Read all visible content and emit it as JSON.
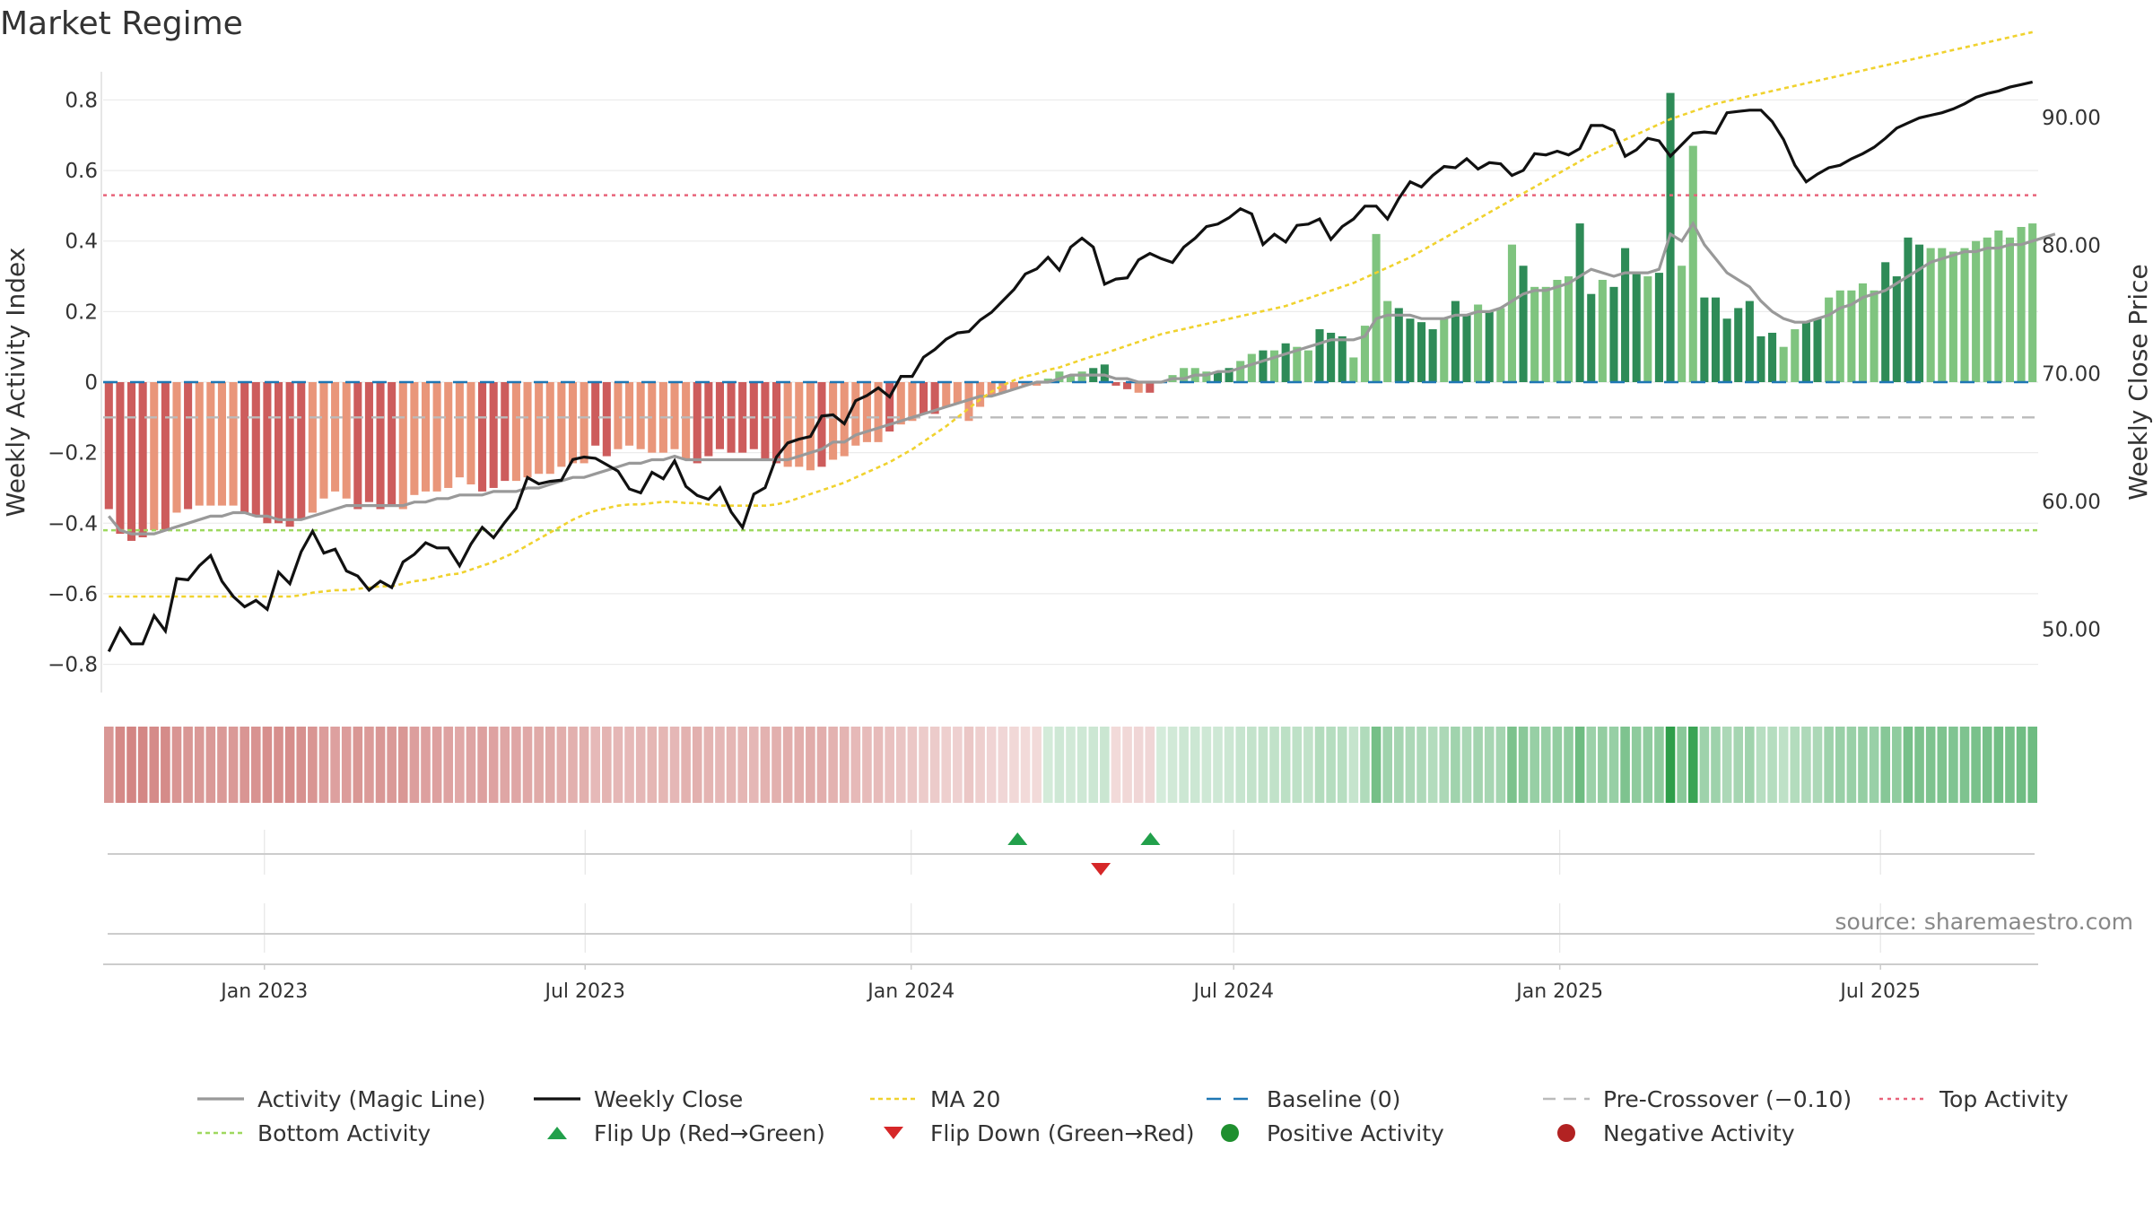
{
  "title": "Market Regime",
  "source": "source: sharemaestro.com",
  "colors": {
    "neg_dark": "#cd5c5c",
    "neg_light": "#e9967a",
    "pos_dark": "#2e8b57",
    "pos_light": "#7fc47f",
    "magic_line": "#999999",
    "close_line": "#111111",
    "ma20": "#f0d22e",
    "baseline": "#1f77b4",
    "pre_crossover": "#bbbbbb",
    "top_activity": "#e8637a",
    "bottom_activity": "#9ed85f",
    "flip_up": "#22a04b",
    "flip_down": "#d62728",
    "positive_dot": "#1f8f2f",
    "negative_dot": "#b22222"
  },
  "legend": [
    {
      "key": "magic",
      "label": "Activity (Magic Line)"
    },
    {
      "key": "close",
      "label": "Weekly Close"
    },
    {
      "key": "ma20",
      "label": "MA 20"
    },
    {
      "key": "baseline",
      "label": "Baseline (0)"
    },
    {
      "key": "precross",
      "label": "Pre-Crossover (−0.10)"
    },
    {
      "key": "top",
      "label": "Top Activity"
    },
    {
      "key": "bottom",
      "label": "Bottom Activity"
    },
    {
      "key": "flipup",
      "label": "Flip Up (Red→Green)"
    },
    {
      "key": "flipdown",
      "label": "Flip Down (Green→Red)"
    },
    {
      "key": "posdot",
      "label": "Positive Activity"
    },
    {
      "key": "negdot",
      "label": "Negative Activity"
    }
  ],
  "chart_data": {
    "type": "bar",
    "title": "Market Regime",
    "ylabel": "Weekly Activity Index",
    "y2label": "Weekly Close Price",
    "ylim": [
      -0.88,
      0.88
    ],
    "y2lim": [
      45.0,
      93.5
    ],
    "yticks": [
      0.8,
      0.6,
      0.4,
      0.2,
      0,
      -0.2,
      -0.4,
      -0.6,
      -0.8
    ],
    "ytick_labels": [
      "0.8",
      "0.6",
      "0.4",
      "0.2",
      "0",
      "−0.2",
      "−0.4",
      "−0.6",
      "−0.8"
    ],
    "y2ticks": [
      90,
      80,
      70,
      60,
      50
    ],
    "y2tick_labels": [
      "90.00",
      "80.00",
      "70.00",
      "60.00",
      "50.00"
    ],
    "x_start": "2022-10-02",
    "x_end": "2025-09-28",
    "xticks": [
      "2023-01-01",
      "2023-07-01",
      "2024-01-01",
      "2024-07-01",
      "2025-01-01",
      "2025-07-01"
    ],
    "xtick_labels": [
      "Jan 2023",
      "Jul 2023",
      "Jan 2024",
      "Jul 2024",
      "Jan 2025",
      "Jul 2025"
    ],
    "reference_lines": {
      "top_activity": 0.53,
      "bottom_activity": -0.42,
      "baseline": 0,
      "pre_crossover": -0.1
    },
    "grid": true,
    "legend_position": "bottom",
    "flip_up": [
      "2024-03-01",
      "2024-05-15"
    ],
    "flip_down": [
      "2024-04-17"
    ],
    "activity_dark": [
      1,
      1,
      1,
      1,
      0,
      1,
      0,
      1,
      0,
      0,
      0,
      0,
      1,
      1,
      1,
      1,
      1,
      1,
      0,
      0,
      0,
      0,
      1,
      1,
      1,
      1,
      0,
      0,
      0,
      0,
      0,
      0,
      0,
      1,
      1,
      1,
      0,
      0,
      0,
      0,
      0,
      0,
      0,
      1,
      1,
      0,
      0,
      0,
      0,
      0,
      0,
      0,
      1,
      1,
      1,
      1,
      1,
      1,
      1,
      1,
      0,
      0,
      0,
      1,
      0,
      0,
      0,
      0,
      0,
      1,
      0,
      0,
      1,
      1,
      0,
      0,
      0,
      0,
      0,
      0,
      0,
      0,
      0,
      0,
      0,
      0,
      0,
      1,
      1,
      1,
      1,
      0,
      1,
      0,
      0,
      0,
      0,
      0,
      1,
      1,
      0,
      0,
      1,
      0,
      1,
      0,
      0,
      1,
      1,
      1,
      0,
      0,
      0,
      0,
      1,
      1,
      1,
      1,
      0,
      1,
      1,
      0,
      1,
      0,
      0,
      1,
      0,
      0,
      0,
      0,
      1,
      1,
      0,
      1,
      1,
      1,
      0,
      1,
      1,
      0,
      0,
      1,
      1,
      1,
      1,
      1,
      1,
      1,
      0,
      0,
      1,
      1,
      0,
      0,
      0,
      0,
      0,
      1,
      1,
      1,
      1
    ],
    "activity": [
      -0.36,
      -0.43,
      -0.45,
      -0.44,
      -0.42,
      -0.42,
      -0.37,
      -0.36,
      -0.35,
      -0.35,
      -0.35,
      -0.35,
      -0.37,
      -0.38,
      -0.4,
      -0.4,
      -0.41,
      -0.39,
      -0.37,
      -0.33,
      -0.31,
      -0.33,
      -0.36,
      -0.34,
      -0.36,
      -0.35,
      -0.36,
      -0.32,
      -0.31,
      -0.31,
      -0.3,
      -0.27,
      -0.29,
      -0.31,
      -0.3,
      -0.28,
      -0.28,
      -0.27,
      -0.26,
      -0.26,
      -0.24,
      -0.23,
      -0.23,
      -0.18,
      -0.21,
      -0.19,
      -0.18,
      -0.19,
      -0.2,
      -0.2,
      -0.19,
      -0.22,
      -0.23,
      -0.21,
      -0.19,
      -0.2,
      -0.2,
      -0.19,
      -0.22,
      -0.23,
      -0.24,
      -0.24,
      -0.25,
      -0.24,
      -0.22,
      -0.21,
      -0.18,
      -0.17,
      -0.17,
      -0.14,
      -0.12,
      -0.11,
      -0.09,
      -0.09,
      -0.07,
      -0.06,
      -0.11,
      -0.07,
      -0.04,
      -0.03,
      -0.02,
      -0.01,
      -0.01,
      0.01,
      0.03,
      0.02,
      0.03,
      0.04,
      0.05,
      -0.01,
      -0.02,
      -0.03,
      -0.03,
      0.0,
      0.02,
      0.04,
      0.04,
      0.03,
      0.03,
      0.04,
      0.06,
      0.08,
      0.09,
      0.09,
      0.11,
      0.1,
      0.09,
      0.15,
      0.14,
      0.13,
      0.07,
      0.16,
      0.42,
      0.23,
      0.21,
      0.18,
      0.17,
      0.15,
      0.18,
      0.23,
      0.19,
      0.22,
      0.2,
      0.21,
      0.39,
      0.33,
      0.27,
      0.27,
      0.29,
      0.3,
      0.45,
      0.25,
      0.29,
      0.27,
      0.38,
      0.31,
      0.3,
      0.31,
      0.82,
      0.33,
      0.67,
      0.24,
      0.24,
      0.18,
      0.21,
      0.23,
      0.13,
      0.14,
      0.1,
      0.15,
      0.17,
      0.18,
      0.24,
      0.26,
      0.26,
      0.28,
      0.26,
      0.34,
      0.3,
      0.41,
      0.39,
      0.38,
      0.38,
      0.37,
      0.38,
      0.4,
      0.41,
      0.43,
      0.41,
      0.44,
      0.45
    ],
    "magic_line": [
      -0.38,
      -0.42,
      -0.43,
      -0.43,
      -0.43,
      -0.42,
      -0.41,
      -0.4,
      -0.39,
      -0.38,
      -0.38,
      -0.37,
      -0.37,
      -0.38,
      -0.38,
      -0.39,
      -0.39,
      -0.39,
      -0.38,
      -0.37,
      -0.36,
      -0.35,
      -0.35,
      -0.35,
      -0.35,
      -0.35,
      -0.35,
      -0.34,
      -0.34,
      -0.33,
      -0.33,
      -0.32,
      -0.32,
      -0.32,
      -0.31,
      -0.31,
      -0.31,
      -0.3,
      -0.3,
      -0.29,
      -0.28,
      -0.27,
      -0.27,
      -0.26,
      -0.25,
      -0.24,
      -0.23,
      -0.23,
      -0.22,
      -0.22,
      -0.21,
      -0.22,
      -0.22,
      -0.22,
      -0.22,
      -0.22,
      -0.22,
      -0.22,
      -0.22,
      -0.22,
      -0.22,
      -0.21,
      -0.2,
      -0.19,
      -0.17,
      -0.17,
      -0.15,
      -0.14,
      -0.13,
      -0.12,
      -0.11,
      -0.1,
      -0.09,
      -0.08,
      -0.07,
      -0.06,
      -0.05,
      -0.04,
      -0.04,
      -0.03,
      -0.02,
      -0.01,
      0.0,
      0.0,
      0.01,
      0.02,
      0.02,
      0.02,
      0.02,
      0.01,
      0.01,
      0.0,
      0.0,
      0.0,
      0.01,
      0.01,
      0.02,
      0.02,
      0.03,
      0.03,
      0.04,
      0.05,
      0.06,
      0.07,
      0.08,
      0.09,
      0.1,
      0.11,
      0.12,
      0.12,
      0.12,
      0.13,
      0.18,
      0.19,
      0.19,
      0.19,
      0.18,
      0.18,
      0.18,
      0.19,
      0.19,
      0.2,
      0.2,
      0.21,
      0.23,
      0.25,
      0.26,
      0.26,
      0.27,
      0.28,
      0.3,
      0.32,
      0.31,
      0.3,
      0.31,
      0.31,
      0.31,
      0.32,
      0.42,
      0.4,
      0.45,
      0.39,
      0.35,
      0.31,
      0.29,
      0.27,
      0.23,
      0.2,
      0.18,
      0.17,
      0.17,
      0.18,
      0.19,
      0.21,
      0.22,
      0.24,
      0.25,
      0.26,
      0.28,
      0.3,
      0.32,
      0.34,
      0.35,
      0.36,
      0.37,
      0.37,
      0.38,
      0.38,
      0.39,
      0.39,
      0.4,
      0.41,
      0.42
    ],
    "weekly_close": [
      48.2,
      50.0,
      48.8,
      48.8,
      51.0,
      49.8,
      53.9,
      53.8,
      54.9,
      55.7,
      53.7,
      52.5,
      51.7,
      52.2,
      51.5,
      54.4,
      53.5,
      56.0,
      57.6,
      55.9,
      56.2,
      54.5,
      54.1,
      53.0,
      53.7,
      53.2,
      55.2,
      55.8,
      56.7,
      56.3,
      56.3,
      54.9,
      56.6,
      57.9,
      57.1,
      58.3,
      59.4,
      61.8,
      61.3,
      61.5,
      61.6,
      63.2,
      63.4,
      63.3,
      62.8,
      62.3,
      60.9,
      60.6,
      62.2,
      61.7,
      63.1,
      61.1,
      60.4,
      60.1,
      61.0,
      59.1,
      57.9,
      60.5,
      61.0,
      63.4,
      64.5,
      64.8,
      65.0,
      66.6,
      66.7,
      66.0,
      67.8,
      68.2,
      68.8,
      68.1,
      69.7,
      69.7,
      71.2,
      71.8,
      72.6,
      73.1,
      73.2,
      74.1,
      74.7,
      75.6,
      76.5,
      77.7,
      78.1,
      79.0,
      78.0,
      79.8,
      80.5,
      79.8,
      76.9,
      77.3,
      77.4,
      78.8,
      79.3,
      78.9,
      78.6,
      79.8,
      80.5,
      81.4,
      81.6,
      82.1,
      82.8,
      82.4,
      80.0,
      80.8,
      80.2,
      81.5,
      81.6,
      82.0,
      80.4,
      81.4,
      82.0,
      83.0,
      83.0,
      82.0,
      83.6,
      84.9,
      84.5,
      85.4,
      86.1,
      86.0,
      86.7,
      85.9,
      86.4,
      86.3,
      85.4,
      85.8,
      87.1,
      87.0,
      87.3,
      87.0,
      87.5,
      89.3,
      89.3,
      88.9,
      86.9,
      87.4,
      88.3,
      88.1,
      86.9,
      87.8,
      88.7,
      88.8,
      88.7,
      90.3,
      90.4,
      90.5,
      90.5,
      89.6,
      88.2,
      86.2,
      84.9,
      85.5,
      86.0,
      86.2,
      86.7,
      87.1,
      87.6,
      88.3,
      89.1,
      89.5,
      89.9,
      90.1,
      90.3,
      90.6,
      91.0,
      91.5,
      91.8,
      92.0,
      92.3,
      92.5,
      92.7
    ],
    "ma20": [
      52.5,
      52.5,
      52.5,
      52.5,
      52.5,
      52.5,
      52.5,
      52.5,
      52.5,
      52.5,
      52.5,
      52.5,
      52.5,
      52.5,
      52.5,
      52.5,
      52.5,
      52.6,
      52.8,
      52.9,
      53.0,
      53.0,
      53.1,
      53.2,
      53.3,
      53.3,
      53.5,
      53.7,
      53.8,
      54.0,
      54.2,
      54.3,
      54.6,
      54.9,
      55.2,
      55.6,
      56.0,
      56.5,
      57.0,
      57.5,
      58.0,
      58.5,
      58.9,
      59.2,
      59.4,
      59.6,
      59.7,
      59.7,
      59.8,
      59.9,
      59.9,
      59.8,
      59.8,
      59.7,
      59.6,
      59.6,
      59.6,
      59.6,
      59.6,
      59.7,
      59.9,
      60.2,
      60.5,
      60.8,
      61.1,
      61.4,
      61.8,
      62.2,
      62.6,
      63.0,
      63.5,
      64.0,
      64.6,
      65.2,
      65.8,
      66.5,
      67.2,
      67.9,
      68.5,
      69.0,
      69.4,
      69.7,
      69.9,
      70.2,
      70.4,
      70.7,
      71.0,
      71.3,
      71.5,
      71.8,
      72.1,
      72.4,
      72.7,
      73.0,
      73.2,
      73.4,
      73.6,
      73.8,
      74.0,
      74.2,
      74.4,
      74.6,
      74.8,
      75.0,
      75.2,
      75.5,
      75.8,
      76.1,
      76.4,
      76.7,
      77.0,
      77.4,
      77.8,
      78.2,
      78.6,
      79.0,
      79.5,
      80.0,
      80.5,
      81.0,
      81.5,
      82.0,
      82.5,
      83.0,
      83.5,
      84.0,
      84.5,
      85.0,
      85.5,
      86.0,
      86.5,
      87.0,
      87.4,
      87.8,
      88.2,
      88.6,
      89.0,
      89.4,
      89.8,
      90.1,
      90.4,
      90.7,
      91.0,
      91.2,
      91.4,
      91.6,
      91.8,
      92.0,
      92.2,
      92.4,
      92.6,
      92.8,
      93.0,
      93.2,
      93.4,
      93.6,
      93.8,
      94.0,
      94.2,
      94.4,
      94.6,
      94.8,
      95.0,
      95.2,
      95.4,
      95.6,
      95.8,
      96.0,
      96.2,
      96.4,
      96.6,
      96.8,
      97.0,
      97.2,
      97.4,
      97.6,
      97.8,
      98.0,
      98.2
    ]
  }
}
